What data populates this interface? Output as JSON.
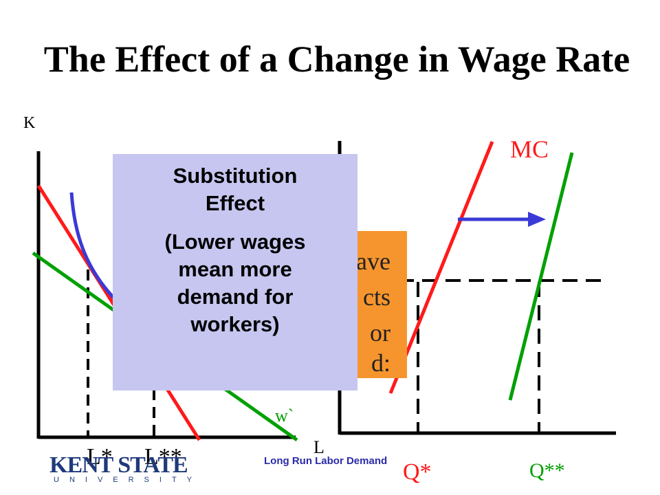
{
  "title": "The Effect of a Change in Wage Rate",
  "left_graph": {
    "y_axis_label": "K",
    "x_axis_label": "L",
    "isocost_label": "w`",
    "l_star_label": "L*",
    "l_star_star_label": "L**"
  },
  "right_graph": {
    "mc_label": "MC",
    "q_star_label": "Q*",
    "q_star_star_label": "Q**"
  },
  "substitution_box": {
    "heading_line1": "Substitution",
    "heading_line2": "Effect",
    "body_line1": "(Lower wages",
    "body_line2": "mean more",
    "body_line3": "demand for",
    "body_line4": "workers)"
  },
  "orange_box": {
    "line1": "ave",
    "line2": "cts",
    "line3": "or",
    "line4": "d:"
  },
  "logo": {
    "main": "KENT STATE",
    "sub": "UNIVERSITY"
  },
  "footer": "Long Run Labor Demand",
  "colors": {
    "red_line": "#ff1a1a",
    "green_line": "#00a000",
    "blue_curve": "#3a3ad6",
    "substitution_box": "#c6c6f0",
    "orange_box": "#f6952e",
    "logo_blue": "#1f3a7a"
  }
}
